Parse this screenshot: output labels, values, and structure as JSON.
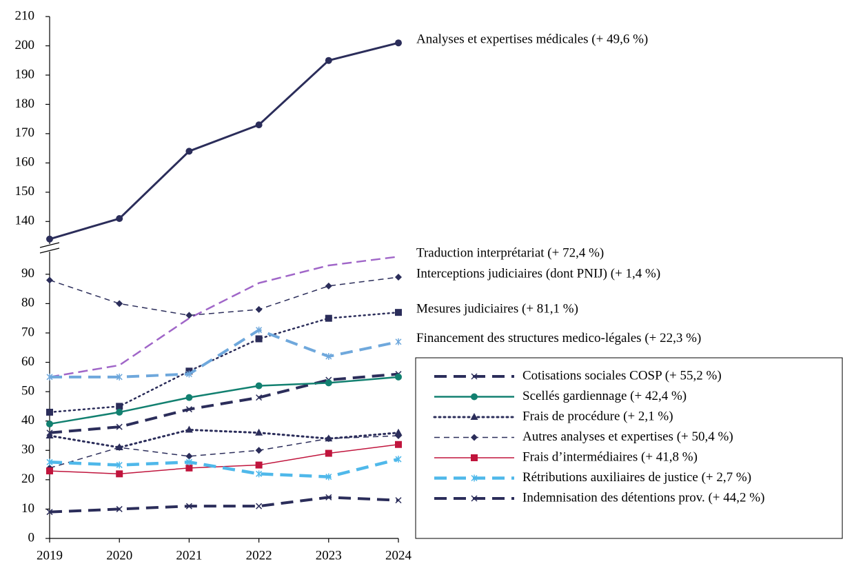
{
  "chart_data": {
    "type": "line",
    "categories": [
      "2019",
      "2020",
      "2021",
      "2022",
      "2023",
      "2024"
    ],
    "ylim": [
      0,
      210
    ],
    "ybreak": [
      97,
      133
    ],
    "yticks": [
      0,
      10,
      20,
      30,
      40,
      50,
      60,
      70,
      80,
      90,
      140,
      150,
      160,
      170,
      180,
      190,
      200,
      210
    ],
    "series": [
      {
        "name": "Analyses et expertises médicales (+ 49,6 %)",
        "color": "#2b2d5a",
        "dash": "solid",
        "width": 3,
        "marker": "circle",
        "end_label": true,
        "values": [
          134,
          141,
          164,
          173,
          195,
          201
        ]
      },
      {
        "name": "Traduction interprétariat (+ 72,4 %)",
        "color": "#a066c8",
        "dash": "dash",
        "width": 2.5,
        "marker": "none",
        "end_label": true,
        "values": [
          55,
          59,
          75,
          87,
          93,
          96
        ]
      },
      {
        "name": "Interceptions judiciaires (dont PNIJ) (+ 1,4 %)",
        "color": "#2b2d5a",
        "dash": "shortdash",
        "width": 1.5,
        "marker": "diamond",
        "end_label": true,
        "values": [
          88,
          80,
          76,
          78,
          86,
          89
        ]
      },
      {
        "name": "Mesures judiciaires (+ 81,1 %)",
        "color": "#2b2d5a",
        "dash": "dot",
        "width": 2.5,
        "marker": "square",
        "end_label": true,
        "values": [
          43,
          45,
          57,
          68,
          75,
          77
        ]
      },
      {
        "name": "Financement des structures medico-légales (+ 22,3 %)",
        "color": "#6fa8dc",
        "dash": "longdash",
        "width": 4,
        "marker": "star",
        "end_label": true,
        "values": [
          55,
          55,
          56,
          71,
          62,
          67
        ]
      },
      {
        "name": "Cotisations sociales COSP (+ 55,2 %)",
        "color": "#2b2d5a",
        "dash": "longdash",
        "width": 4,
        "marker": "x",
        "end_label": false,
        "values": [
          36,
          38,
          44,
          48,
          54,
          56
        ]
      },
      {
        "name": "Scellés gardiennage (+ 42,4 %)",
        "color": "#128070",
        "dash": "solid",
        "width": 2.5,
        "marker": "circle",
        "end_label": false,
        "values": [
          39,
          43,
          48,
          52,
          53,
          55
        ]
      },
      {
        "name": "Frais de procédure (+ 2,1 %)",
        "color": "#2b2d5a",
        "dash": "dot",
        "width": 3,
        "marker": "triangle",
        "end_label": false,
        "values": [
          35,
          31,
          37,
          36,
          34,
          36
        ]
      },
      {
        "name": "Autres analyses et expertises (+ 50,4 %)",
        "color": "#2b2d5a",
        "dash": "shortdash",
        "width": 1.5,
        "marker": "diamond",
        "end_label": false,
        "values": [
          24,
          31,
          28,
          30,
          34,
          35
        ]
      },
      {
        "name": "Frais d’intermédiaires (+ 41,8 %)",
        "color": "#c0143c",
        "dash": "solid",
        "width": 1.5,
        "marker": "square",
        "end_label": false,
        "values": [
          23,
          22,
          24,
          25,
          29,
          32
        ]
      },
      {
        "name": "Rétributions auxiliaires de justice (+ 2,7 %)",
        "color": "#4fb8ea",
        "dash": "longdash",
        "width": 4.5,
        "marker": "star",
        "end_label": false,
        "values": [
          26,
          25,
          26,
          22,
          21,
          27
        ]
      },
      {
        "name": "Indemnisation des détentions prov. (+ 44,2 %)",
        "color": "#2b2d5a",
        "dash": "longdash",
        "width": 4,
        "marker": "x",
        "end_label": false,
        "values": [
          9,
          10,
          11,
          11,
          14,
          13
        ]
      }
    ]
  }
}
